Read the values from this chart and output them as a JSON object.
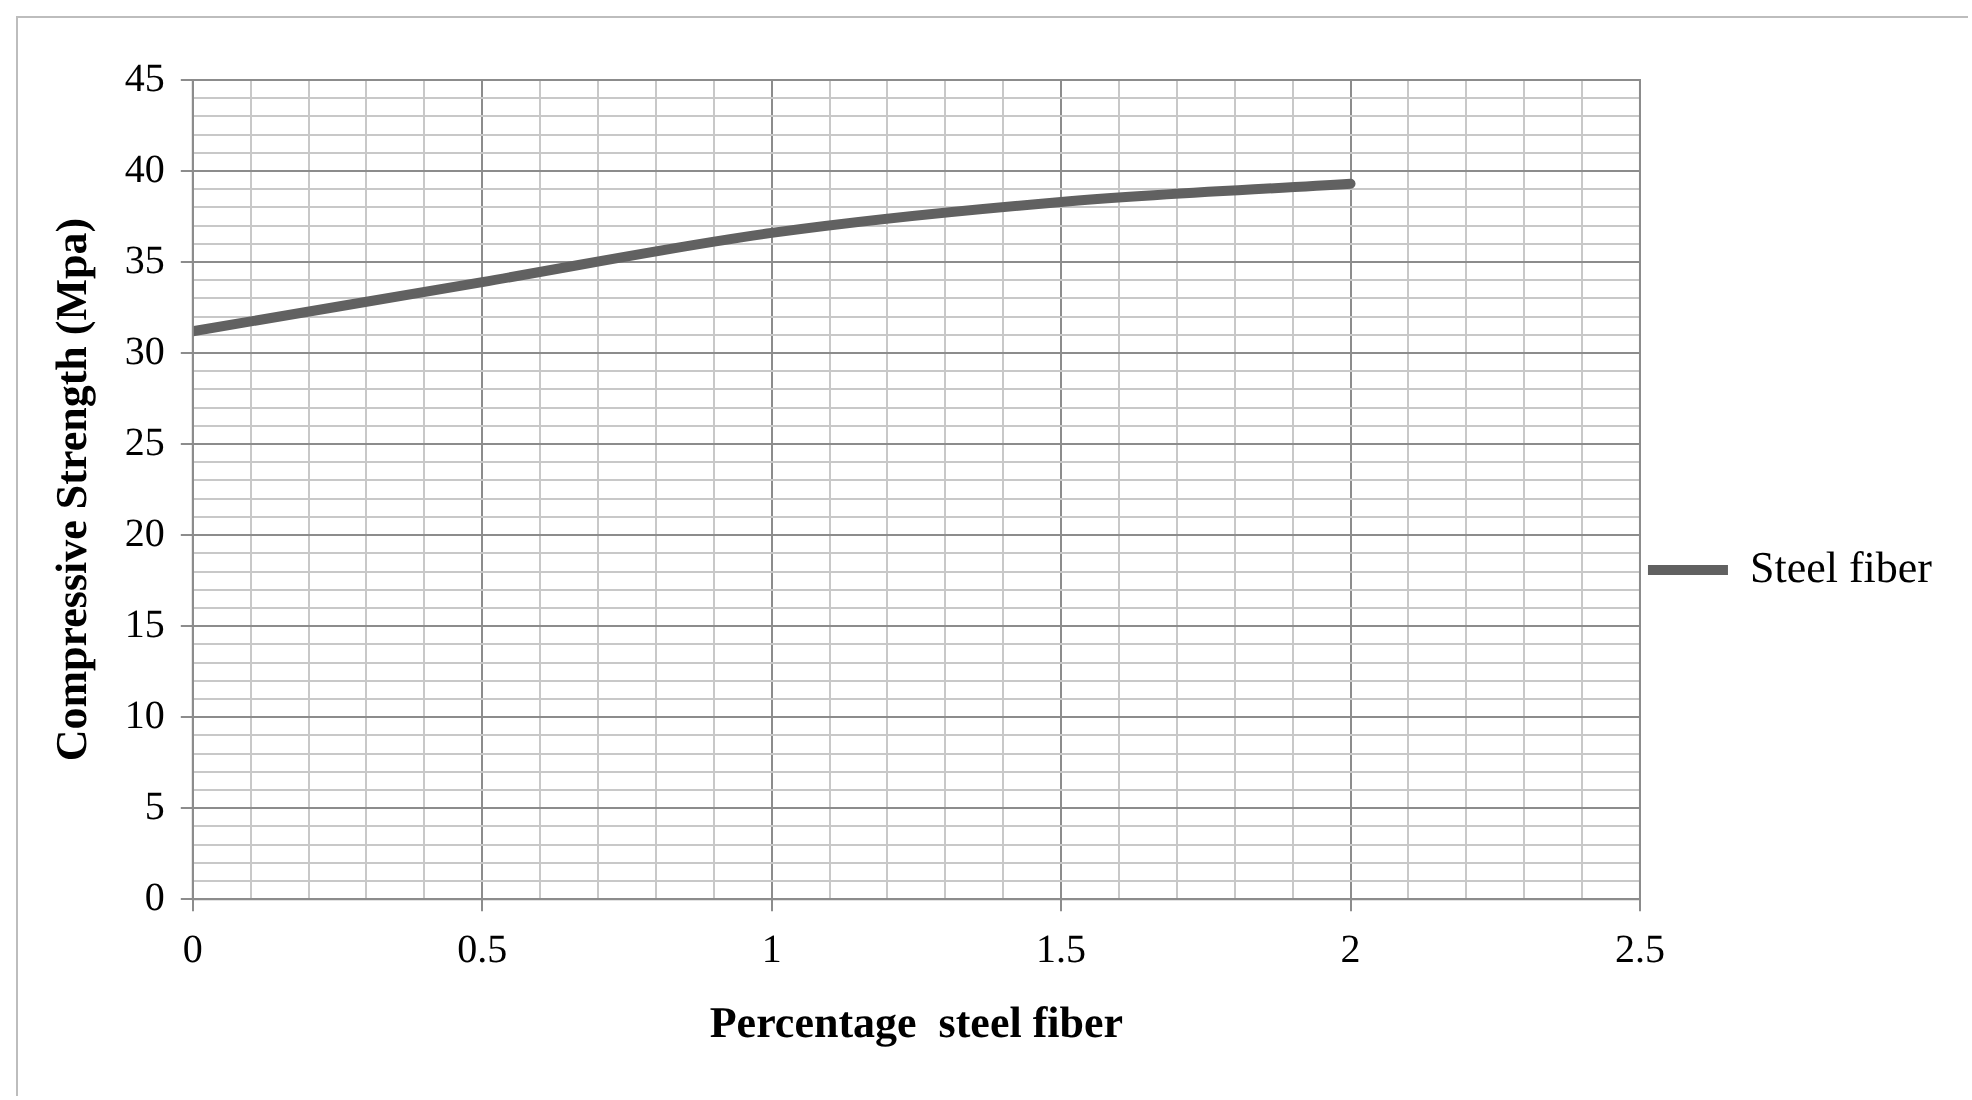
{
  "chart_data": {
    "type": "line",
    "xlabel": "Percentage  steel fiber",
    "ylabel": "Compressive Strength (Mpa)",
    "x": [
      0,
      0.5,
      1,
      1.5,
      2
    ],
    "series": [
      {
        "name": "Steel fiber",
        "color": "#616161",
        "values": [
          31.2,
          33.9,
          36.6,
          38.3,
          39.3
        ]
      }
    ],
    "xlim": [
      0,
      2.5
    ],
    "xticks": [
      0,
      {
        "value": 0.1,
        "label": null
      },
      {
        "value": 0.2,
        "label": null
      },
      {
        "value": 0.3,
        "label": null
      },
      {
        "value": 0.4,
        "label": null
      },
      0.5,
      {
        "value": 0.6,
        "label": null
      },
      {
        "value": 0.7,
        "label": null
      },
      {
        "value": 0.8,
        "label": null
      },
      {
        "value": 0.9,
        "label": null
      },
      1,
      {
        "value": 1.1,
        "label": null
      },
      {
        "value": 1.2,
        "label": null
      },
      {
        "value": 1.3,
        "label": null
      },
      {
        "value": 1.4,
        "label": null
      },
      1.5,
      {
        "value": 1.6,
        "label": null
      },
      {
        "value": 1.7,
        "label": null
      },
      {
        "value": 1.8,
        "label": null
      },
      {
        "value": 1.9,
        "label": null
      },
      2,
      {
        "value": 2.1,
        "label": null
      },
      {
        "value": 2.2,
        "label": null
      },
      {
        "value": 2.3,
        "label": null
      },
      {
        "value": 2.4,
        "label": null
      },
      2.5
    ],
    "ylim": [
      0,
      45
    ],
    "yticks": [
      0,
      {
        "value": 1,
        "label": null
      },
      {
        "value": 2,
        "label": null
      },
      {
        "value": 3,
        "label": null
      },
      {
        "value": 4,
        "label": null
      },
      5,
      {
        "value": 6,
        "label": null
      },
      {
        "value": 7,
        "label": null
      },
      {
        "value": 8,
        "label": null
      },
      {
        "value": 9,
        "label": null
      },
      10,
      {
        "value": 11,
        "label": null
      },
      {
        "value": 12,
        "label": null
      },
      {
        "value": 13,
        "label": null
      },
      {
        "value": 14,
        "label": null
      },
      15,
      {
        "value": 16,
        "label": null
      },
      {
        "value": 17,
        "label": null
      },
      {
        "value": 18,
        "label": null
      },
      {
        "value": 19,
        "label": null
      },
      20,
      {
        "value": 21,
        "label": null
      },
      {
        "value": 22,
        "label": null
      },
      {
        "value": 23,
        "label": null
      },
      {
        "value": 24,
        "label": null
      },
      25,
      {
        "value": 26,
        "label": null
      },
      {
        "value": 27,
        "label": null
      },
      {
        "value": 28,
        "label": null
      },
      {
        "value": 29,
        "label": null
      },
      30,
      {
        "value": 31,
        "label": null
      },
      {
        "value": 32,
        "label": null
      },
      {
        "value": 33,
        "label": null
      },
      {
        "value": 34,
        "label": null
      },
      35,
      {
        "value": 36,
        "label": null
      },
      {
        "value": 37,
        "label": null
      },
      {
        "value": 38,
        "label": null
      },
      {
        "value": 39,
        "label": null
      },
      40,
      {
        "value": 41,
        "label": null
      },
      {
        "value": 42,
        "label": null
      },
      {
        "value": 43,
        "label": null
      },
      {
        "value": 44,
        "label": null
      },
      45
    ],
    "grid": true,
    "legend": "right",
    "marker": "none",
    "line_style": "solid"
  }
}
